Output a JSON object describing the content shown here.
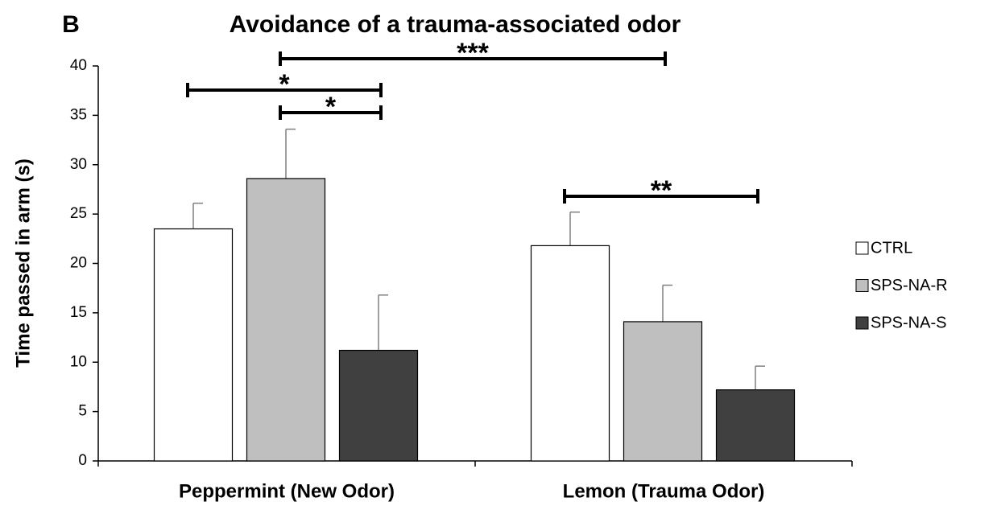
{
  "chart_data": {
    "type": "bar",
    "panel": "B",
    "title": "Avoidance of a trauma-associated odor",
    "y_label": "Time passed in arm (s)",
    "categories": [
      "Peppermint (New Odor)",
      "Lemon (Trauma Odor)"
    ],
    "series": [
      {
        "name": "CTRL",
        "color": "#ffffff",
        "values": [
          23.5,
          21.8
        ],
        "errors": [
          2.6,
          3.4
        ]
      },
      {
        "name": "SPS-NA-R",
        "color": "#bfbfbf",
        "values": [
          28.6,
          14.1
        ],
        "errors": [
          5.0,
          3.7
        ]
      },
      {
        "name": "SPS-NA-S",
        "color": "#404040",
        "values": [
          11.2,
          7.2
        ],
        "errors": [
          5.6,
          2.4
        ]
      }
    ],
    "ylim": [
      0,
      40
    ],
    "yticks": [
      0,
      5,
      10,
      15,
      20,
      25,
      30,
      35,
      40
    ],
    "annotations": [
      "***",
      "*",
      "*",
      "**"
    ],
    "legend": "right"
  }
}
